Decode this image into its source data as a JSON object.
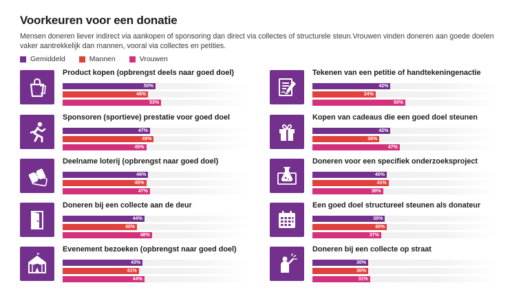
{
  "title": "Voorkeuren voor een donatie",
  "subtitle": "Mensen doneren liever indirect via aankopen of sponsoring dan direct via collectes of structurele steun.Vrouwen vinden doneren aan goede doelen vaker aantrekkelijk dan mannen, vooral via collectes en petities.",
  "colors": {
    "gemiddeld": "#74308d",
    "mannen": "#e0413d",
    "vrouwen": "#d4317d",
    "icon_bg": "#74308d"
  },
  "chart_data": {
    "type": "bar",
    "orientation": "horizontal",
    "xlim": [
      0,
      100
    ],
    "series_names": [
      "Gemiddeld",
      "Mannen",
      "Vrouwen"
    ],
    "legend_position": "top-left",
    "categories": [
      {
        "label": "Product kopen (opbrengst deels naar goed doel)",
        "icon": "shopping-bag-icon",
        "values": [
          50,
          46,
          53
        ],
        "labels": [
          "50%",
          "46%",
          "53%"
        ]
      },
      {
        "label": "Sponsoren (sportieve) prestatie voor goed doel",
        "icon": "runner-icon",
        "values": [
          47,
          49,
          45
        ],
        "labels": [
          "47%",
          "49%",
          "45%"
        ]
      },
      {
        "label": "Deelname loterij (opbrengst naar goed doel)",
        "icon": "ticket-icon",
        "values": [
          46,
          45,
          47
        ],
        "labels": [
          "46%",
          "45%",
          "47%"
        ]
      },
      {
        "label": "Doneren bij een collecte aan de deur",
        "icon": "door-icon",
        "values": [
          44,
          40,
          48
        ],
        "labels": [
          "44%",
          "40%",
          "48%"
        ]
      },
      {
        "label": "Evenement bezoeken (opbrengst naar goed doel)",
        "icon": "circus-tent-icon",
        "values": [
          43,
          41,
          44
        ],
        "labels": [
          "43%",
          "41%",
          "44%"
        ]
      },
      {
        "label": "Tekenen van een petitie of handtekeningenactie",
        "icon": "petition-icon",
        "values": [
          42,
          34,
          50
        ],
        "labels": [
          "42%",
          "34%",
          "50%"
        ]
      },
      {
        "label": "Kopen van cadeaus die een goed doel steunen",
        "icon": "gift-icon",
        "values": [
          42,
          36,
          47
        ],
        "labels": [
          "42%",
          "36%",
          "47%"
        ]
      },
      {
        "label": "Doneren voor een specifiek onderzoeksproject",
        "icon": "research-flask-icon",
        "values": [
          40,
          41,
          38
        ],
        "labels": [
          "40%",
          "41%",
          "38%"
        ]
      },
      {
        "label": "Een goed doel structureel steunen als donateur",
        "icon": "calendar-icon",
        "values": [
          39,
          40,
          37
        ],
        "labels": [
          "39%",
          "40%",
          "37%"
        ]
      },
      {
        "label": "Doneren bij een collecte op straat",
        "icon": "street-collector-icon",
        "values": [
          30,
          30,
          31
        ],
        "labels": [
          "30%",
          "30%",
          "31%"
        ]
      }
    ]
  }
}
